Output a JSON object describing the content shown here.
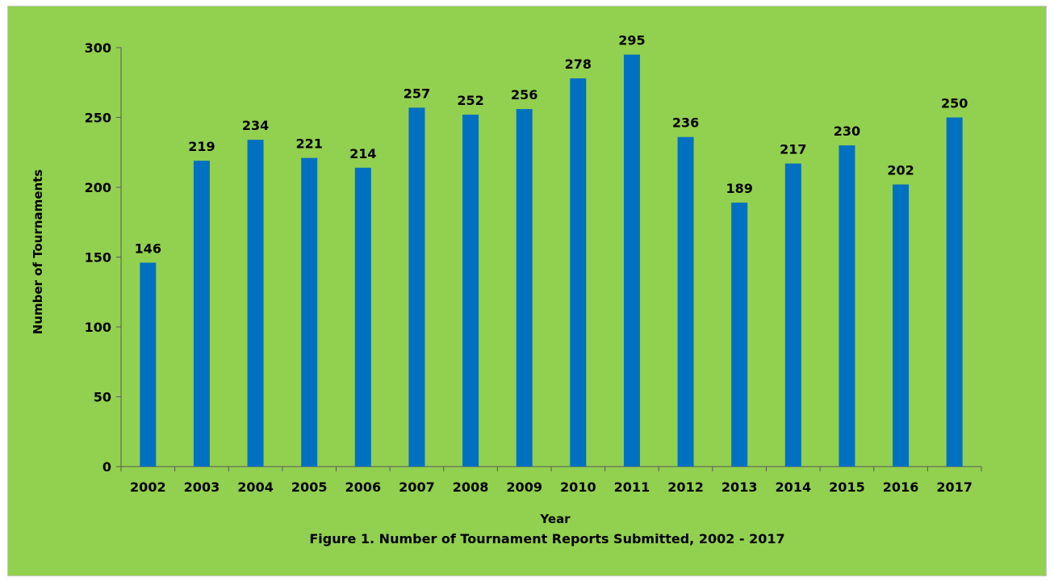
{
  "colors": {
    "background": "#92d050",
    "bar": "#0070c0",
    "axis": "#595959",
    "text": "#000000"
  },
  "chart_data": {
    "type": "bar",
    "categories": [
      "2002",
      "2003",
      "2004",
      "2005",
      "2006",
      "2007",
      "2008",
      "2009",
      "2010",
      "2011",
      "2012",
      "2013",
      "2014",
      "2015",
      "2016",
      "2017"
    ],
    "values": [
      146,
      219,
      234,
      221,
      214,
      257,
      252,
      256,
      278,
      295,
      236,
      189,
      217,
      230,
      202,
      250
    ],
    "title": "Figure 1. Number of Tournament Reports Submitted, 2002 - 2017",
    "xlabel": "Year",
    "ylabel": "Number of Tournaments",
    "ylim": [
      0,
      300
    ],
    "yticks": [
      0,
      50,
      100,
      150,
      200,
      250,
      300
    ],
    "data_labels": true,
    "grid": false,
    "legend": "none"
  }
}
